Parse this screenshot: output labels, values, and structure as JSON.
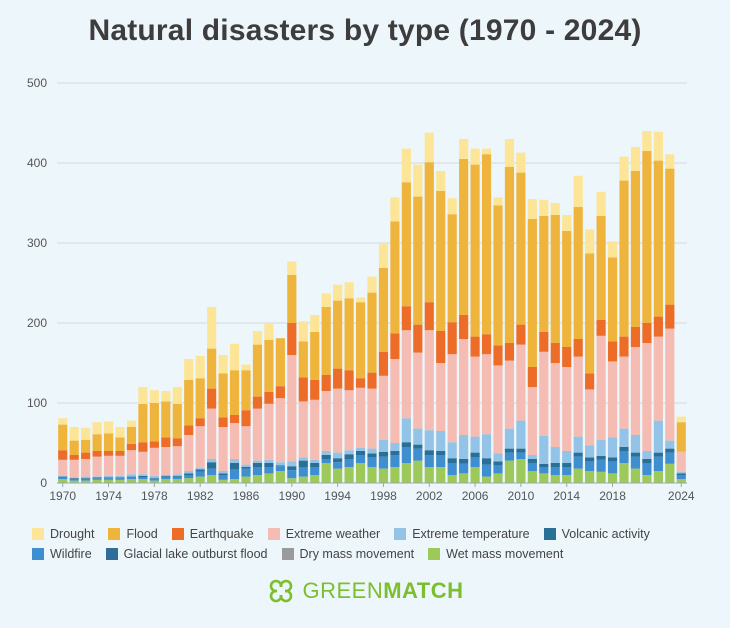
{
  "title": "Natural disasters by type (1970 - 2024)",
  "brand": {
    "part1": "GREEN",
    "part2": "MATCH"
  },
  "chart_data": {
    "type": "bar",
    "stacked": true,
    "title": "Natural disasters by type (1970 - 2024)",
    "xlabel": "",
    "ylabel": "",
    "ylim": [
      0,
      500
    ],
    "yticks": [
      0,
      100,
      200,
      300,
      400,
      500
    ],
    "xtick_labels": [
      "1970",
      "1974",
      "1978",
      "1982",
      "1986",
      "1990",
      "1994",
      "1998",
      "2002",
      "2006",
      "2010",
      "2014",
      "2018",
      "2024"
    ],
    "grid": true,
    "legend_position": "bottom",
    "categories": [
      "1970",
      "1971",
      "1972",
      "1973",
      "1974",
      "1975",
      "1976",
      "1977",
      "1978",
      "1979",
      "1980",
      "1981",
      "1982",
      "1983",
      "1984",
      "1985",
      "1986",
      "1987",
      "1988",
      "1989",
      "1990",
      "1991",
      "1992",
      "1993",
      "1994",
      "1995",
      "1996",
      "1997",
      "1998",
      "1999",
      "2000",
      "2001",
      "2002",
      "2003",
      "2004",
      "2005",
      "2006",
      "2007",
      "2008",
      "2009",
      "2010",
      "2011",
      "2012",
      "2013",
      "2014",
      "2015",
      "2016",
      "2017",
      "2018",
      "2019",
      "2020",
      "2021",
      "2022",
      "2023",
      "2024"
    ],
    "series": [
      {
        "name": "Wet mass movement",
        "color": "#9dc95a",
        "values": [
          5,
          3,
          3,
          4,
          4,
          4,
          5,
          5,
          3,
          5,
          5,
          6,
          8,
          10,
          4,
          5,
          8,
          10,
          12,
          15,
          6,
          8,
          10,
          25,
          18,
          20,
          25,
          20,
          18,
          20,
          25,
          28,
          20,
          20,
          10,
          12,
          20,
          8,
          12,
          28,
          30,
          15,
          12,
          10,
          10,
          18,
          15,
          14,
          12,
          25,
          18,
          10,
          15,
          24,
          5
        ]
      },
      {
        "name": "Dry mass movement",
        "color": "#9a9a9a",
        "values": [
          0,
          0,
          0,
          0,
          0,
          0,
          0,
          0,
          0,
          0,
          0,
          0,
          0,
          0,
          0,
          0,
          0,
          0,
          0,
          0,
          0,
          0,
          0,
          0,
          0,
          0,
          0,
          0,
          0,
          0,
          0,
          0,
          0,
          0,
          0,
          0,
          0,
          0,
          0,
          0,
          0,
          0,
          0,
          0,
          0,
          0,
          0,
          0,
          0,
          0,
          0,
          0,
          0,
          0,
          0
        ]
      },
      {
        "name": "Glacial lake outburst flood",
        "color": "#2f6e96",
        "values": [
          0,
          0,
          0,
          0,
          0,
          0,
          0,
          0,
          0,
          0,
          0,
          0,
          0,
          0,
          0,
          0,
          0,
          0,
          0,
          0,
          0,
          0,
          0,
          0,
          0,
          0,
          0,
          0,
          0,
          0,
          0,
          0,
          0,
          0,
          0,
          0,
          0,
          0,
          0,
          0,
          0,
          0,
          0,
          0,
          0,
          0,
          0,
          0,
          0,
          0,
          0,
          0,
          0,
          0,
          0
        ]
      },
      {
        "name": "Wildfire",
        "color": "#3f8ecf",
        "values": [
          2,
          2,
          2,
          2,
          2,
          2,
          2,
          2,
          2,
          3,
          3,
          4,
          6,
          8,
          6,
          12,
          10,
          10,
          8,
          6,
          10,
          12,
          10,
          5,
          8,
          10,
          10,
          12,
          15,
          15,
          20,
          15,
          15,
          15,
          15,
          12,
          12,
          15,
          10,
          10,
          8,
          10,
          8,
          10,
          10,
          15,
          12,
          15,
          15,
          15,
          15,
          15,
          18,
          14,
          5
        ]
      },
      {
        "name": "Volcanic activity",
        "color": "#2a6f96",
        "values": [
          1,
          1,
          1,
          1,
          1,
          1,
          1,
          2,
          1,
          1,
          1,
          2,
          3,
          8,
          2,
          8,
          2,
          5,
          5,
          1,
          5,
          8,
          5,
          5,
          5,
          6,
          5,
          5,
          6,
          5,
          6,
          5,
          6,
          5,
          6,
          6,
          6,
          8,
          5,
          5,
          5,
          5,
          4,
          5,
          5,
          5,
          5,
          5,
          5,
          5,
          5,
          5,
          5,
          5,
          2
        ]
      },
      {
        "name": "Extreme temperature",
        "color": "#93c4e8",
        "values": [
          1,
          1,
          2,
          1,
          2,
          2,
          3,
          2,
          3,
          1,
          2,
          3,
          2,
          4,
          3,
          5,
          3,
          3,
          4,
          4,
          6,
          4,
          4,
          5,
          7,
          5,
          4,
          6,
          15,
          10,
          30,
          20,
          25,
          25,
          20,
          30,
          20,
          30,
          10,
          25,
          35,
          5,
          35,
          20,
          15,
          20,
          15,
          20,
          25,
          23,
          22,
          10,
          40,
          10,
          2
        ]
      },
      {
        "name": "Extreme weather",
        "color": "#f5bcb3",
        "values": [
          20,
          22,
          22,
          25,
          25,
          25,
          30,
          28,
          35,
          35,
          35,
          45,
          52,
          63,
          55,
          45,
          48,
          65,
          70,
          80,
          133,
          70,
          75,
          75,
          80,
          75,
          75,
          75,
          80,
          105,
          110,
          95,
          125,
          85,
          110,
          120,
          100,
          100,
          110,
          85,
          95,
          85,
          105,
          105,
          105,
          100,
          70,
          130,
          95,
          90,
          110,
          135,
          105,
          140,
          25
        ]
      },
      {
        "name": "Earthquake",
        "color": "#ec6c28",
        "values": [
          12,
          6,
          8,
          7,
          6,
          6,
          8,
          12,
          8,
          12,
          10,
          12,
          10,
          25,
          12,
          10,
          20,
          15,
          15,
          15,
          40,
          30,
          25,
          20,
          25,
          25,
          12,
          20,
          30,
          32,
          30,
          35,
          35,
          40,
          40,
          30,
          25,
          25,
          25,
          22,
          25,
          25,
          25,
          25,
          25,
          22,
          20,
          20,
          25,
          25,
          25,
          25,
          25,
          30,
          0
        ]
      },
      {
        "name": "Flood",
        "color": "#eeb43b",
        "values": [
          32,
          18,
          16,
          21,
          22,
          17,
          21,
          48,
          48,
          45,
          43,
          57,
          50,
          50,
          55,
          56,
          50,
          65,
          65,
          60,
          60,
          45,
          60,
          85,
          85,
          90,
          95,
          100,
          105,
          140,
          155,
          160,
          175,
          175,
          135,
          195,
          215,
          225,
          175,
          220,
          190,
          185,
          145,
          160,
          145,
          165,
          150,
          130,
          105,
          195,
          195,
          215,
          195,
          170,
          37
        ]
      },
      {
        "name": "Drought",
        "color": "#fde598",
        "values": [
          8,
          17,
          15,
          15,
          15,
          13,
          8,
          21,
          16,
          13,
          21,
          26,
          28,
          52,
          23,
          33,
          7,
          17,
          20,
          0,
          17,
          25,
          21,
          17,
          20,
          20,
          6,
          20,
          30,
          30,
          42,
          40,
          37,
          25,
          20,
          25,
          20,
          7,
          10,
          35,
          25,
          25,
          20,
          15,
          20,
          39,
          30,
          30,
          20,
          30,
          30,
          25,
          36,
          18,
          7
        ]
      }
    ]
  }
}
